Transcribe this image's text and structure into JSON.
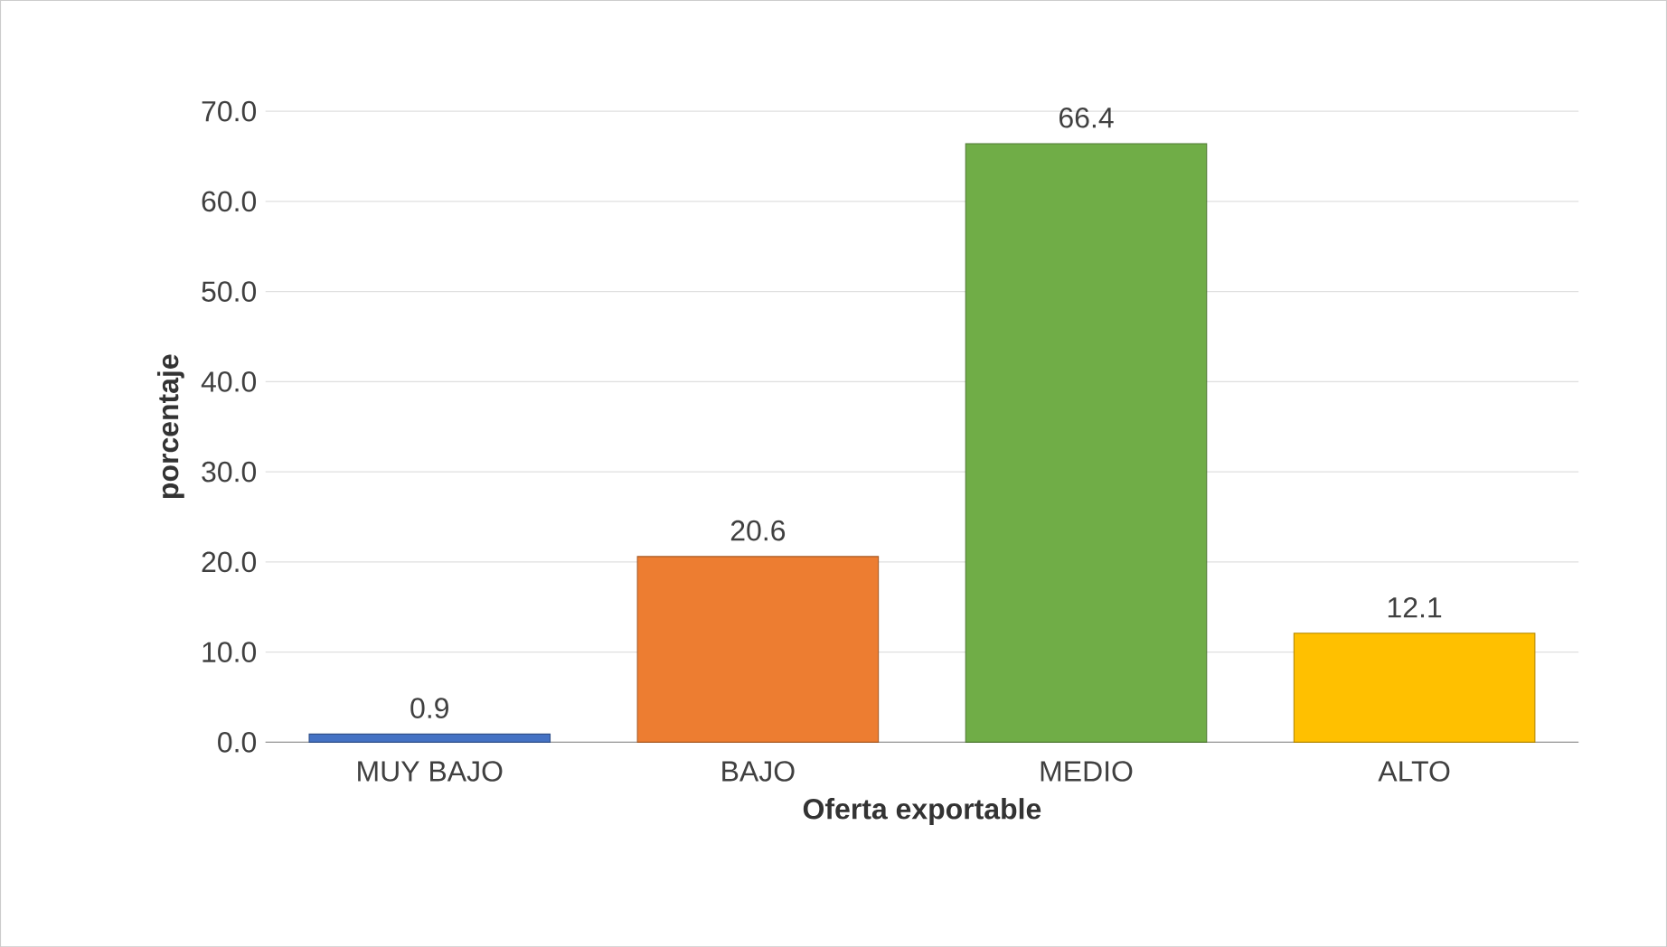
{
  "chart_data": {
    "type": "bar",
    "xlabel": "Oferta exportable",
    "ylabel": "porcentaje",
    "categories": [
      "MUY BAJO",
      "BAJO",
      "MEDIO",
      "ALTO"
    ],
    "values": [
      0.9,
      20.6,
      66.4,
      12.1
    ],
    "colors": [
      "#4472c4",
      "#ed7d31",
      "#70ad47",
      "#ffc000"
    ],
    "ylim": [
      0,
      70
    ],
    "yticks": [
      {
        "value": 0,
        "label": "0.0"
      },
      {
        "value": 10,
        "label": "10.0"
      },
      {
        "value": 20,
        "label": "20.0"
      },
      {
        "value": 30,
        "label": "30.0"
      },
      {
        "value": 40,
        "label": "40.0"
      },
      {
        "value": 50,
        "label": "50.0"
      },
      {
        "value": 60,
        "label": "60.0"
      },
      {
        "value": 70,
        "label": "70.0"
      }
    ],
    "grid": "y",
    "data_labels": true
  }
}
